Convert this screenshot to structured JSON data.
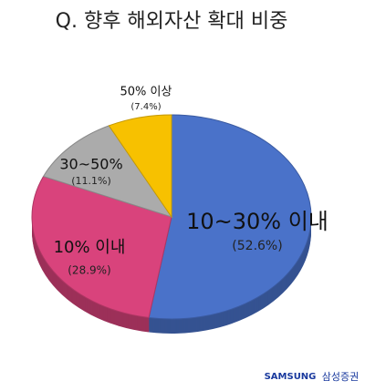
{
  "chart_data": {
    "type": "pie",
    "title": "Q. 향후 해외자산 확대 비중",
    "categories": [
      "10~30% 이내",
      "10% 이내",
      "30~50%",
      "50% 이상"
    ],
    "values": [
      52.6,
      28.9,
      11.1,
      7.4
    ],
    "value_labels": [
      "(52.6%)",
      "(28.9%)",
      "(11.1%)",
      "(7.4%)"
    ],
    "colors": [
      "#4a72c9",
      "#d9437c",
      "#ababab",
      "#f7c100"
    ],
    "logo": "SAMSUNG",
    "brand": "삼성증권"
  }
}
